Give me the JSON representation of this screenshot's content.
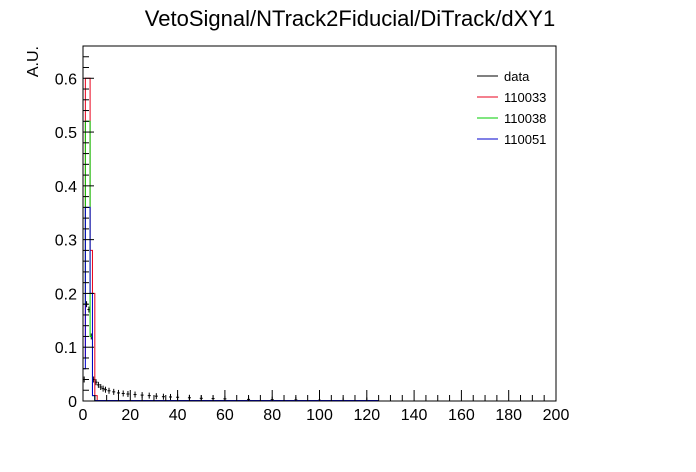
{
  "chart_data": {
    "type": "line",
    "title": "VetoSignal/NTrack2Fiducial/DiTrack/dXY1",
    "xlabel": "",
    "ylabel": "A.U.",
    "xlim": [
      0,
      200
    ],
    "ylim": [
      0,
      0.66
    ],
    "x_ticks": [
      0,
      20,
      40,
      60,
      80,
      100,
      120,
      140,
      160,
      180,
      200
    ],
    "y_ticks": [
      0,
      0.1,
      0.2,
      0.3,
      0.4,
      0.5,
      0.6
    ],
    "x_tick_labels": [
      "0",
      "20",
      "40",
      "60",
      "80",
      "100",
      "120",
      "140",
      "160",
      "180",
      "200"
    ],
    "y_tick_labels": [
      "0",
      "0.1",
      "0.2",
      "0.3",
      "0.4",
      "0.5",
      "0.6"
    ],
    "grid": false,
    "legend_position": "top-right",
    "series": [
      {
        "name": "data",
        "color": "#000000",
        "style": "points",
        "x": [
          0.5,
          1.5,
          2.5,
          3.5,
          4.5,
          5.5,
          6.5,
          7.5,
          8.5,
          9.5,
          11,
          13,
          15,
          17,
          19,
          22,
          25,
          28,
          31,
          34,
          37,
          40,
          45,
          50,
          55,
          60,
          70,
          80,
          90,
          100,
          110,
          120
        ],
        "values": [
          0.04,
          0.18,
          0.17,
          0.12,
          0.04,
          0.035,
          0.03,
          0.026,
          0.023,
          0.021,
          0.019,
          0.017,
          0.015,
          0.014,
          0.013,
          0.012,
          0.011,
          0.01,
          0.009,
          0.008,
          0.0075,
          0.007,
          0.006,
          0.005,
          0.0045,
          0.004,
          0.003,
          0.0025,
          0.002,
          0.0015,
          0.001,
          0.001
        ]
      },
      {
        "name": "110033",
        "color": "#e8001c",
        "style": "hist",
        "x": [
          0.5,
          1.5,
          2.5,
          3.5,
          4.5,
          5.5
        ],
        "values": [
          0.08,
          0.6,
          0.6,
          0.28,
          0.2,
          0.01
        ]
      },
      {
        "name": "110038",
        "color": "#00cc00",
        "style": "hist",
        "x": [
          0.5,
          1.5,
          2.5,
          3.5,
          4.5
        ],
        "values": [
          0.18,
          0.52,
          0.52,
          0.12,
          0.01
        ]
      },
      {
        "name": "110051",
        "color": "#0000cc",
        "style": "hist",
        "x": [
          0.5,
          1.5,
          2.5,
          3.5,
          4.5
        ],
        "values": [
          0.06,
          0.36,
          0.36,
          0.2,
          0.01
        ]
      }
    ]
  }
}
